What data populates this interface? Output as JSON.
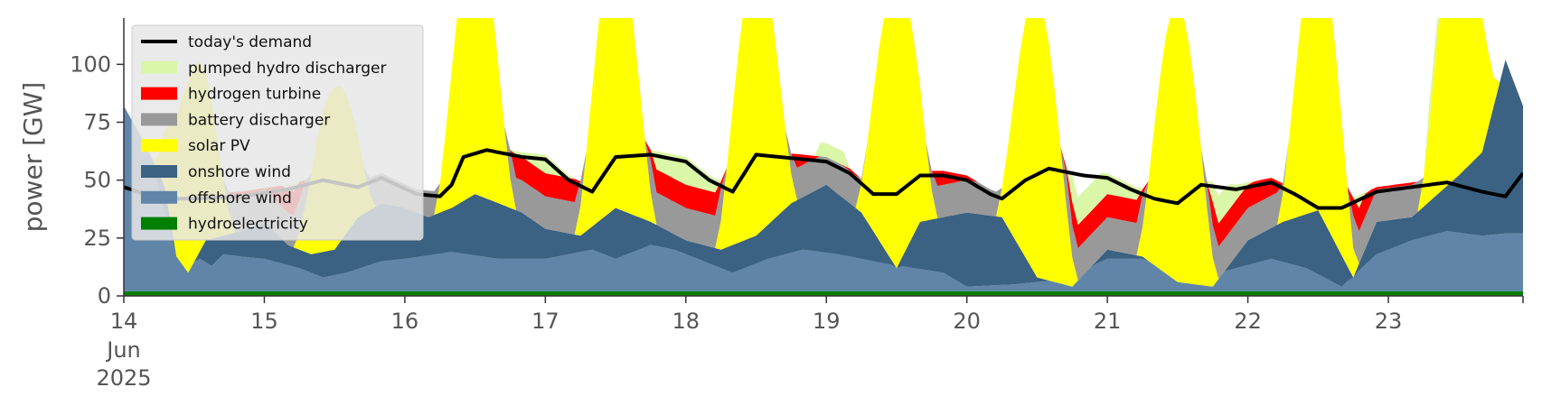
{
  "chart_data": {
    "type": "area",
    "title": "",
    "xlabel": "",
    "ylabel": "power [GW]",
    "ylim": [
      0,
      120
    ],
    "xlim": [
      0,
      239
    ],
    "grid": false,
    "legend_position": "top-left",
    "y_ticks": [
      0,
      25,
      50,
      75,
      100
    ],
    "x_ticks": [
      {
        "x": 0,
        "label": "14",
        "sublabels": [
          "Jun",
          "2025"
        ]
      },
      {
        "x": 24,
        "label": "15"
      },
      {
        "x": 48,
        "label": "16"
      },
      {
        "x": 72,
        "label": "17"
      },
      {
        "x": 96,
        "label": "18"
      },
      {
        "x": 120,
        "label": "19"
      },
      {
        "x": 144,
        "label": "20"
      },
      {
        "x": 168,
        "label": "21"
      },
      {
        "x": 192,
        "label": "22"
      },
      {
        "x": 216,
        "label": "23"
      }
    ],
    "x_unit": "hour since 14 Jun 2025 00:00",
    "series": [
      {
        "name": "hydroelectricity",
        "color": "#008000",
        "key": "hydro"
      },
      {
        "name": "offshore wind",
        "color": "#6085a8",
        "key": "offshore"
      },
      {
        "name": "onshore wind",
        "color": "#3b6183",
        "key": "onshore"
      },
      {
        "name": "solar PV",
        "color": "#ffff00",
        "key": "solar"
      },
      {
        "name": "battery discharger",
        "color": "#999999",
        "key": "battery"
      },
      {
        "name": "hydrogen turbine",
        "color": "#ff0000",
        "key": "hydrogen"
      },
      {
        "name": "pumped hydro discharger",
        "color": "#d9f7a6",
        "key": "pumped"
      }
    ],
    "demand": {
      "name": "today's demand",
      "color": "#000000"
    },
    "legend_order": [
      "today's demand",
      "pumped hydro discharger",
      "hydrogen turbine",
      "battery discharger",
      "solar PV",
      "onshore wind",
      "offshore wind",
      "hydroelectricity"
    ]
  }
}
